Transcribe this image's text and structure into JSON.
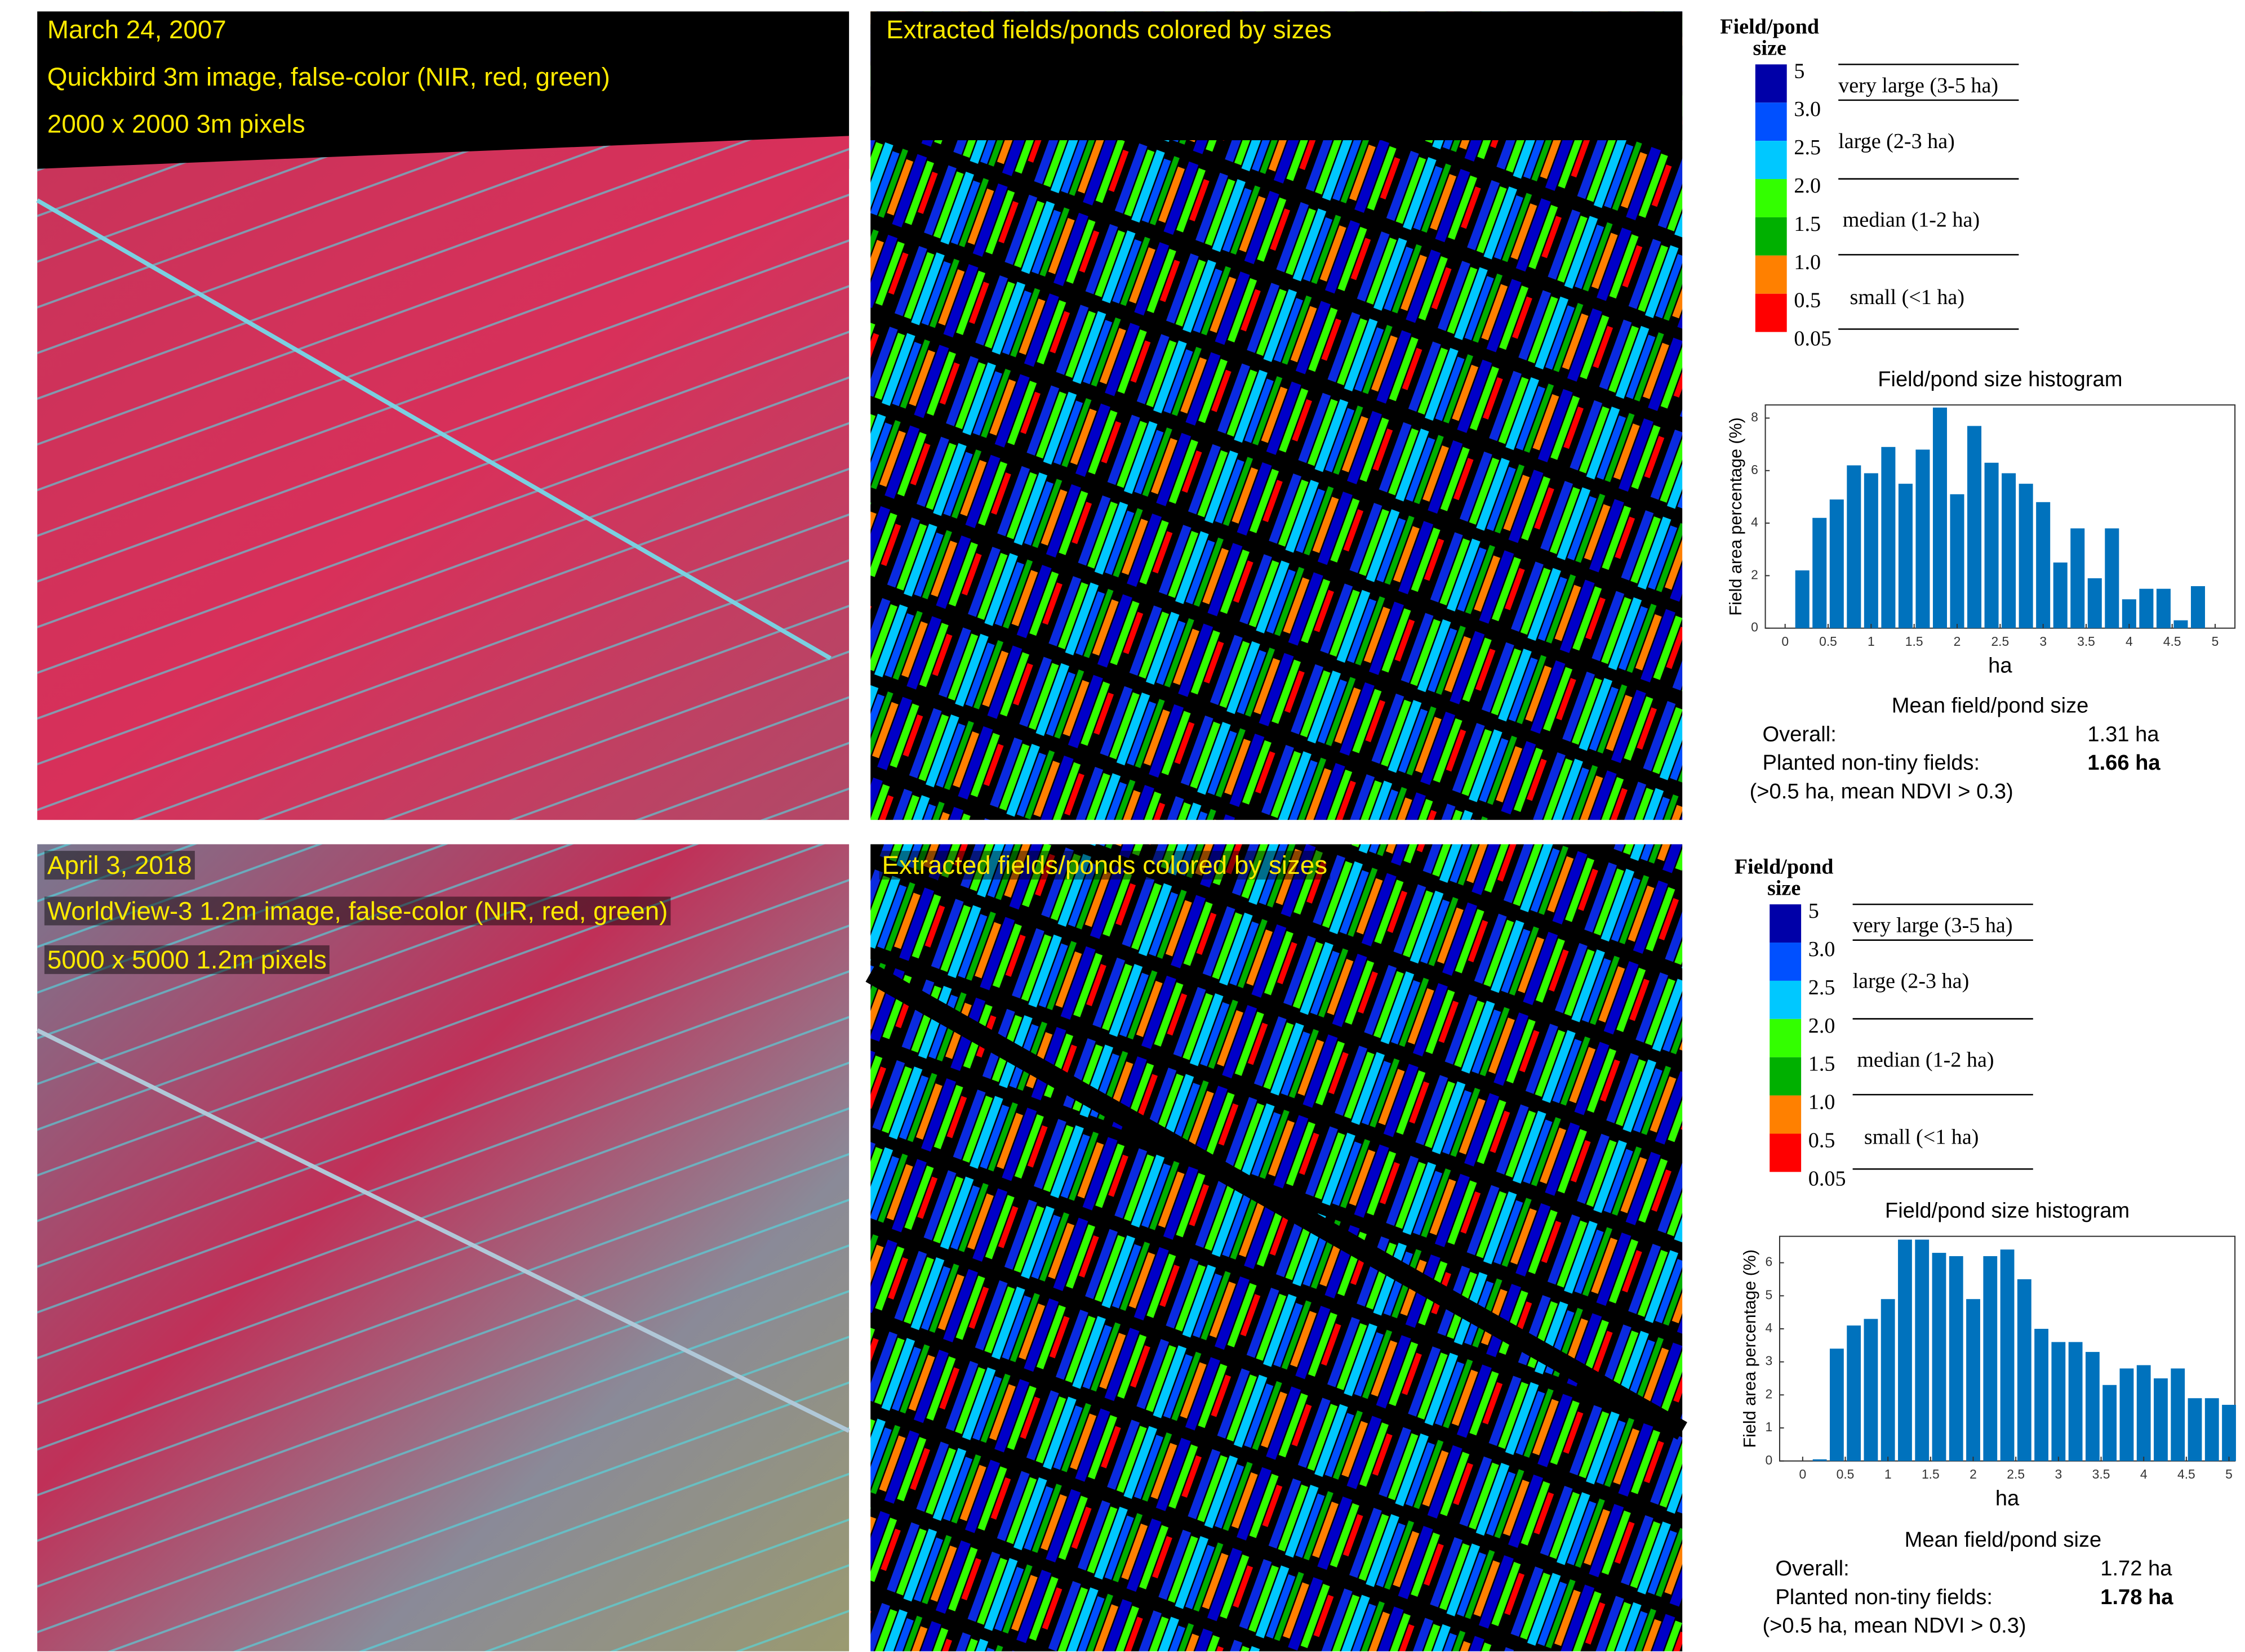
{
  "panels": [
    {
      "image_labels": [
        "March 24, 2007",
        "Quickbird 3m image, false-color (NIR, red, green)",
        "2000 x 2000 3m pixels"
      ],
      "map_title": "Extracted fields/ponds colored by sizes",
      "legend": {
        "title_lines": [
          "Field/pond",
          "size"
        ],
        "ticks": [
          "5",
          "3.0",
          "2.5",
          "2.0",
          "1.5",
          "1.0",
          "0.5",
          "0.05"
        ],
        "colors": [
          "#0000a8",
          "#0050ff",
          "#00c8ff",
          "#33ff00",
          "#00b000",
          "#ff8000",
          "#ff0000"
        ],
        "classes": [
          "very large (3-5 ha)",
          "large (2-3 ha)",
          "median (1-2 ha)",
          "small (<1 ha)"
        ]
      },
      "summary": {
        "title": "Mean field/pond size",
        "rows": [
          [
            "Overall:",
            "1.31 ha"
          ],
          [
            "Planted non-tiny fields:",
            "1.66 ha"
          ]
        ],
        "note": "(>0.5 ha, mean NDVI > 0.3)"
      }
    },
    {
      "image_labels": [
        "April 3, 2018",
        "WorldView-3 1.2m image, false-color (NIR, red, green)",
        "5000 x 5000 1.2m pixels"
      ],
      "map_title": "Extracted fields/ponds colored by sizes",
      "legend": {
        "title_lines": [
          "Field/pond",
          "size"
        ],
        "ticks": [
          "5",
          "3.0",
          "2.5",
          "2.0",
          "1.5",
          "1.0",
          "0.5",
          "0.05"
        ],
        "colors": [
          "#0000a8",
          "#0050ff",
          "#00c8ff",
          "#33ff00",
          "#00b000",
          "#ff8000",
          "#ff0000"
        ],
        "classes": [
          "very large (3-5 ha)",
          "large (2-3 ha)",
          "median (1-2 ha)",
          "small (<1 ha)"
        ]
      },
      "summary": {
        "title": "Mean field/pond size",
        "rows": [
          [
            "Overall:",
            "1.72 ha"
          ],
          [
            "Planted non-tiny fields:",
            "1.78 ha"
          ]
        ],
        "note": "(>0.5 ha, mean NDVI > 0.3)"
      }
    }
  ],
  "chart_data": [
    {
      "type": "histogram",
      "title": "Field/pond size histogram",
      "x_label": "ha",
      "y_label": "Field area percentage (%)",
      "color": "#0072bd",
      "bins": [
        0.1,
        0.3,
        0.5,
        0.7,
        0.9,
        1.1,
        1.3,
        1.5,
        1.7,
        1.9,
        2.1,
        2.3,
        2.5,
        2.7,
        2.9,
        3.1,
        3.3,
        3.5,
        3.7,
        3.9,
        4.1,
        4.3,
        4.5,
        4.7,
        4.9
      ],
      "values": [
        2.2,
        4.2,
        4.9,
        6.2,
        5.9,
        6.9,
        5.5,
        6.8,
        8.4,
        5.1,
        7.7,
        6.3,
        5.9,
        5.5,
        4.8,
        2.5,
        3.8,
        1.9,
        3.8,
        1.1,
        1.5,
        1.5,
        0.3,
        1.6
      ],
      "xlim": [
        -0.23,
        5.23
      ],
      "ylim": [
        0,
        8.5
      ],
      "xticks": [
        0,
        0.5,
        1,
        1.5,
        2,
        2.5,
        3,
        3.5,
        4,
        4.5,
        5
      ],
      "yticks": [
        0,
        2,
        4,
        6,
        8
      ]
    },
    {
      "type": "histogram",
      "title": "Field/pond size histogram",
      "x_label": "ha",
      "y_label": "Field area percentage (%)",
      "color": "#0072bd",
      "bins": [
        0.1,
        0.3,
        0.5,
        0.7,
        0.9,
        1.1,
        1.3,
        1.5,
        1.7,
        1.9,
        2.1,
        2.3,
        2.5,
        2.7,
        2.9,
        3.1,
        3.3,
        3.5,
        3.7,
        3.9,
        4.1,
        4.3,
        4.5,
        4.7,
        4.9,
        5.1
      ],
      "values": [
        0.05,
        3.4,
        4.1,
        4.3,
        4.9,
        6.7,
        6.7,
        6.3,
        6.2,
        4.9,
        6.2,
        6.4,
        5.5,
        4.0,
        3.6,
        3.6,
        3.3,
        2.3,
        2.8,
        2.9,
        2.5,
        2.8,
        1.9,
        1.9,
        1.7
      ],
      "xlim": [
        -0.27,
        5.07
      ],
      "ylim": [
        0,
        6.8
      ],
      "xticks": [
        0,
        0.5,
        1,
        1.5,
        2,
        2.5,
        3,
        3.5,
        4,
        4.5,
        5
      ],
      "yticks": [
        0,
        1,
        2,
        3,
        4,
        5,
        6
      ]
    }
  ]
}
